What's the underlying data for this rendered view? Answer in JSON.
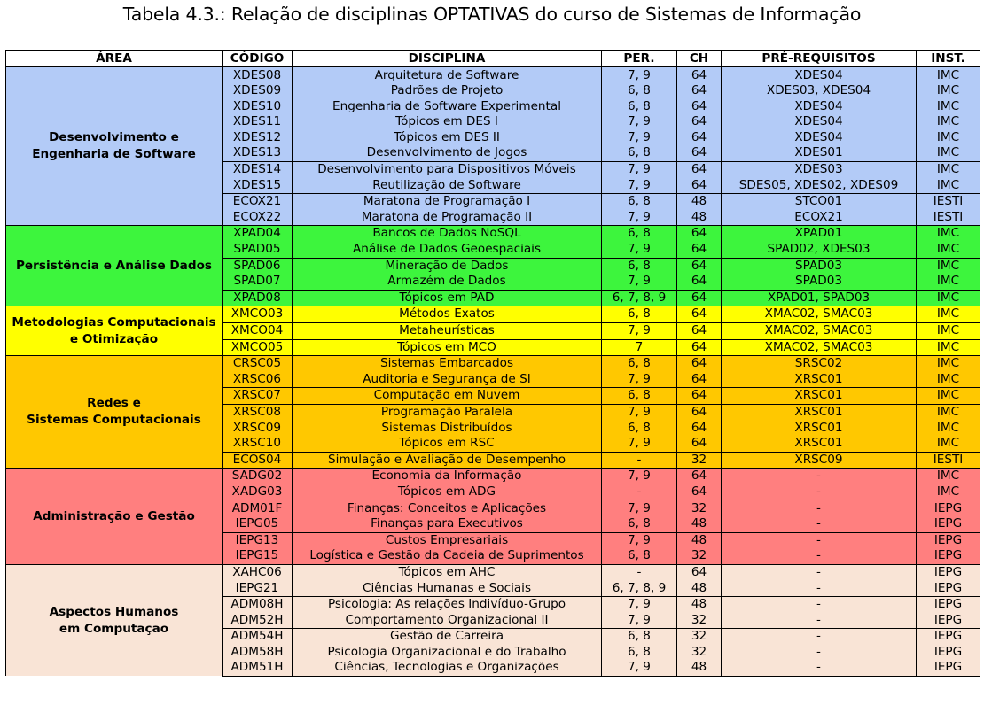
{
  "caption": "Tabela 4.3.: Relação de disciplinas OPTATIVAS do curso de Sistemas de Informação",
  "headers": [
    "ÁREA",
    "CÓDIGO",
    "DISCIPLINA",
    "PER.",
    "CH",
    "PRÉ-REQUISITOS",
    "INST."
  ],
  "colors": [
    "#b3cbf7",
    "#3df53d",
    "#ffff00",
    "#ffc800",
    "#ff7f7f",
    "#f9e4d6"
  ],
  "groups": [
    {
      "area_lines": [
        "Desenvolvimento e",
        "Engenharia de Software"
      ],
      "rows": [
        [
          "XDES08",
          "Arquitetura de Software",
          "7, 9",
          "64",
          "XDES04",
          "IMC"
        ],
        [
          "XDES09",
          "Padrões de Projeto",
          "6, 8",
          "64",
          "XDES03, XDES04",
          "IMC"
        ],
        [
          "XDES10",
          "Engenharia de Software Experimental",
          "6, 8",
          "64",
          "XDES04",
          "IMC"
        ],
        [
          "XDES11",
          "Tópicos em DES I",
          "7, 9",
          "64",
          "XDES04",
          "IMC"
        ],
        [
          "XDES12",
          "Tópicos em DES II",
          "7, 9",
          "64",
          "XDES04",
          "IMC"
        ],
        [
          "XDES13",
          "Desenvolvimento de Jogos",
          "6, 8",
          "64",
          "XDES01",
          "IMC"
        ],
        [
          "XDES14",
          "Desenvolvimento para Dispositivos Móveis",
          "7, 9",
          "64",
          "XDES03",
          "IMC"
        ],
        [
          "XDES15",
          "Reutilização de Software",
          "7, 9",
          "64",
          "SDES05, XDES02, XDES09",
          "IMC"
        ],
        [
          "ECOX21",
          "Maratona de Programação I",
          "6, 8",
          "48",
          "STCO01",
          "IESTI"
        ],
        [
          "ECOX22",
          "Maratona de Programação II",
          "7, 9",
          "48",
          "ECOX21",
          "IESTI"
        ]
      ],
      "subdivs": [
        6,
        8
      ]
    },
    {
      "area_lines": [
        "Persistência e Análise Dados"
      ],
      "rows": [
        [
          "XPAD04",
          "Bancos de Dados NoSQL",
          "6, 8",
          "64",
          "XPAD01",
          "IMC"
        ],
        [
          "SPAD05",
          "Análise de Dados Geoespaciais",
          "7, 9",
          "64",
          "SPAD02, XDES03",
          "IMC"
        ],
        [
          "SPAD06",
          "Mineração de Dados",
          "6, 8",
          "64",
          "SPAD03",
          "IMC"
        ],
        [
          "SPAD07",
          "Armazém de Dados",
          "7, 9",
          "64",
          "SPAD03",
          "IMC"
        ],
        [
          "XPAD08",
          "Tópicos em PAD",
          "6, 7, 8, 9",
          "64",
          "XPAD01, SPAD03",
          "IMC"
        ]
      ],
      "subdivs": [
        2,
        4
      ]
    },
    {
      "area_lines": [
        "Metodologias Computacionais",
        "e Otimização"
      ],
      "rows": [
        [
          "XMCO03",
          "Métodos Exatos",
          "6, 8",
          "64",
          "XMAC02, SMAC03",
          "IMC"
        ],
        [
          "XMCO04",
          "Metaheurísticas",
          "7, 9",
          "64",
          "XMAC02, SMAC03",
          "IMC"
        ],
        [
          "XMCO05",
          "Tópicos em MCO",
          "7",
          "64",
          "XMAC02, SMAC03",
          "IMC"
        ]
      ],
      "subdivs": [
        1,
        2
      ]
    },
    {
      "area_lines": [
        "Redes e",
        "Sistemas Computacionais"
      ],
      "rows": [
        [
          "CRSC05",
          "Sistemas Embarcados",
          "6, 8",
          "64",
          "SRSC02",
          "IMC"
        ],
        [
          "XRSC06",
          "Auditoria e Segurança de SI",
          "7, 9",
          "64",
          "XRSC01",
          "IMC"
        ],
        [
          "XRSC07",
          "Computação em Nuvem",
          "6, 8",
          "64",
          "XRSC01",
          "IMC"
        ],
        [
          "XRSC08",
          "Programação Paralela",
          "7, 9",
          "64",
          "XRSC01",
          "IMC"
        ],
        [
          "XRSC09",
          "Sistemas Distribuídos",
          "6, 8",
          "64",
          "XRSC01",
          "IMC"
        ],
        [
          "XRSC10",
          "Tópicos em RSC",
          "7, 9",
          "64",
          "XRSC01",
          "IMC"
        ],
        [
          "ECOS04",
          "Simulação e Avaliação de Desempenho",
          "-",
          "32",
          "XRSC09",
          "IESTI"
        ]
      ],
      "subdivs": [
        2,
        3,
        6
      ]
    },
    {
      "area_lines": [
        "Administração e Gestão"
      ],
      "rows": [
        [
          "SADG02",
          "Economia da Informação",
          "7, 9",
          "64",
          "-",
          "IMC"
        ],
        [
          "XADG03",
          "Tópicos em ADG",
          "-",
          "64",
          "-",
          "IMC"
        ],
        [
          "ADM01F",
          "Finanças: Conceitos e Aplicações",
          "7, 9",
          "32",
          "-",
          "IEPG"
        ],
        [
          "IEPG05",
          "Finanças para Executivos",
          "6, 8",
          "48",
          "-",
          "IEPG"
        ],
        [
          "IEPG13",
          "Custos Empresariais",
          "7, 9",
          "48",
          "-",
          "IEPG"
        ],
        [
          "IEPG15",
          "Logística e Gestão da Cadeia de Suprimentos",
          "6, 8",
          "32",
          "-",
          "IEPG"
        ]
      ],
      "subdivs": [
        2,
        4
      ]
    },
    {
      "area_lines": [
        "Aspectos Humanos",
        "em Computação"
      ],
      "rows": [
        [
          "XAHC06",
          "Tópicos em AHC",
          "-",
          "64",
          "-",
          "IEPG"
        ],
        [
          "IEPG21",
          "Ciências Humanas e Sociais",
          "6, 7, 8, 9",
          "48",
          "-",
          "IEPG"
        ],
        [
          "ADM08H",
          "Psicologia: As relações Indivíduo-Grupo",
          "7, 9",
          "48",
          "-",
          "IEPG"
        ],
        [
          "ADM52H",
          "Comportamento Organizacional II",
          "7, 9",
          "32",
          "-",
          "IEPG"
        ],
        [
          "ADM54H",
          "Gestão de Carreira",
          "6, 8",
          "32",
          "-",
          "IEPG"
        ],
        [
          "ADM58H",
          "Psicologia Organizacional e do Trabalho",
          "6, 8",
          "32",
          "-",
          "IEPG"
        ],
        [
          "ADM51H",
          "Ciências, Tecnologias e Organizações",
          "7, 9",
          "48",
          "-",
          "IEPG"
        ]
      ],
      "subdivs": [
        2,
        4
      ]
    }
  ]
}
